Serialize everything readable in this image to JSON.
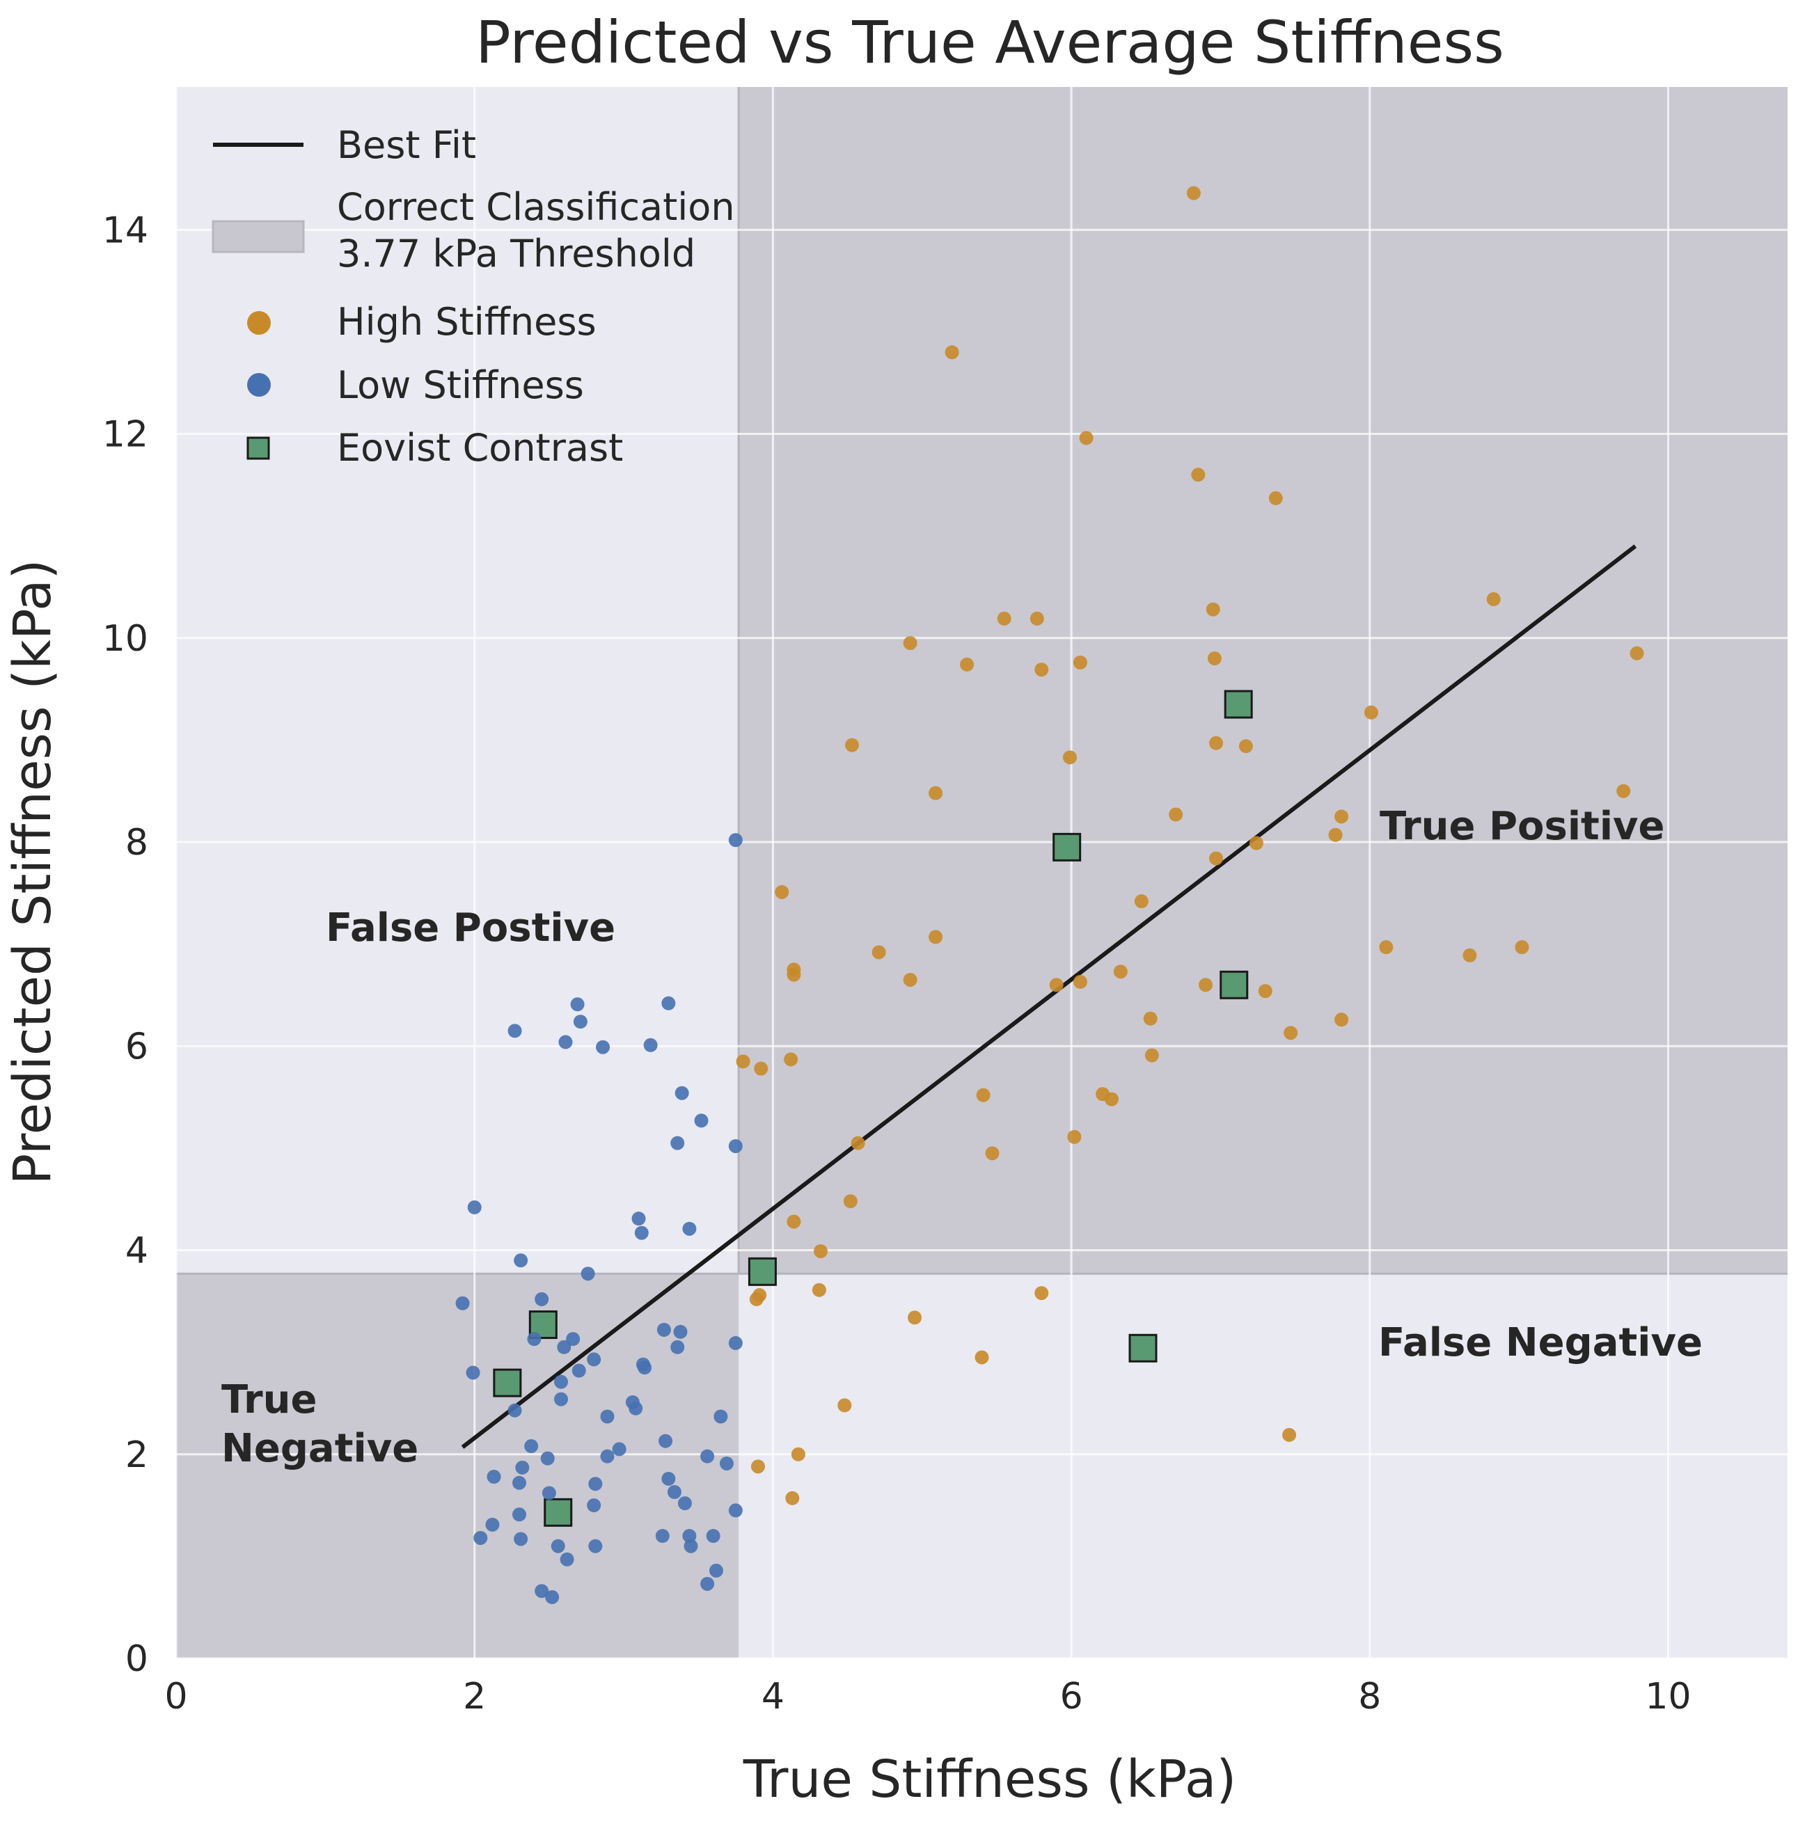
{
  "chart_data": {
    "type": "scatter",
    "title": "Predicted vs True Average Stiffness",
    "xlabel": "True Stiffness (kPa)",
    "ylabel": "Predicted Stiffness (kPa)",
    "xlim": [
      0,
      10.8
    ],
    "ylim": [
      0,
      15.4
    ],
    "xticks": [
      0,
      2,
      4,
      6,
      8,
      10
    ],
    "yticks": [
      0,
      2,
      4,
      6,
      8,
      10,
      12,
      14
    ],
    "grid": true,
    "threshold": 3.77,
    "legend_position": "top-left",
    "legend": {
      "best_fit": "Best Fit",
      "correct_classification_line1": "Correct Classification",
      "correct_classification_line2": "3.77 kPa Threshold",
      "high": "High Stiffness",
      "low": "Low Stiffness",
      "eovist": "Eovist Contrast"
    },
    "annotations": {
      "false_positive": "False Postive",
      "true_positive": "True Positive",
      "false_negative": "False Negative",
      "true_negative_line1": "True",
      "true_negative_line2": "Negative"
    },
    "colors": {
      "background": "#eaeaf2",
      "shade": "#c8c7cf",
      "high": "#c88a28",
      "low": "#4671b0",
      "eovist": "#5a9a72",
      "fit": "#1a1a1a",
      "grid": "#ffffff"
    },
    "best_fit": {
      "x": [
        1.92,
        9.78
      ],
      "y": [
        2.07,
        10.9
      ]
    },
    "series": [
      {
        "name": "High Stiffness",
        "points": [
          [
            6.82,
            14.36
          ],
          [
            5.2,
            12.8
          ],
          [
            6.1,
            11.96
          ],
          [
            6.85,
            11.6
          ],
          [
            7.37,
            11.37
          ],
          [
            8.83,
            10.38
          ],
          [
            6.95,
            10.28
          ],
          [
            5.55,
            10.19
          ],
          [
            5.77,
            10.19
          ],
          [
            4.92,
            9.95
          ],
          [
            9.79,
            9.85
          ],
          [
            6.96,
            9.8
          ],
          [
            6.06,
            9.76
          ],
          [
            5.3,
            9.74
          ],
          [
            5.8,
            9.69
          ],
          [
            8.01,
            9.27
          ],
          [
            6.97,
            8.97
          ],
          [
            7.17,
            8.94
          ],
          [
            4.53,
            8.95
          ],
          [
            5.99,
            8.83
          ],
          [
            5.09,
            8.48
          ],
          [
            9.7,
            8.5
          ],
          [
            6.7,
            8.27
          ],
          [
            7.81,
            8.25
          ],
          [
            7.77,
            8.07
          ],
          [
            7.24,
            7.99
          ],
          [
            6.97,
            7.84
          ],
          [
            4.06,
            7.51
          ],
          [
            6.47,
            7.42
          ],
          [
            5.09,
            7.07
          ],
          [
            4.71,
            6.92
          ],
          [
            8.11,
            6.97
          ],
          [
            9.02,
            6.97
          ],
          [
            8.67,
            6.89
          ],
          [
            4.14,
            6.75
          ],
          [
            4.14,
            6.7
          ],
          [
            6.33,
            6.73
          ],
          [
            4.92,
            6.65
          ],
          [
            5.9,
            6.6
          ],
          [
            6.06,
            6.63
          ],
          [
            6.9,
            6.6
          ],
          [
            7.3,
            6.54
          ],
          [
            6.53,
            6.27
          ],
          [
            7.81,
            6.26
          ],
          [
            7.47,
            6.13
          ],
          [
            6.54,
            5.91
          ],
          [
            3.8,
            5.85
          ],
          [
            4.12,
            5.87
          ],
          [
            3.92,
            5.78
          ],
          [
            5.41,
            5.52
          ],
          [
            6.21,
            5.53
          ],
          [
            6.27,
            5.48
          ],
          [
            6.02,
            5.11
          ],
          [
            4.57,
            5.05
          ],
          [
            5.47,
            4.95
          ],
          [
            4.52,
            4.48
          ],
          [
            4.14,
            4.28
          ],
          [
            4.32,
            3.99
          ],
          [
            4.31,
            3.61
          ],
          [
            5.8,
            3.58
          ],
          [
            3.91,
            3.56
          ],
          [
            3.89,
            3.52
          ],
          [
            4.95,
            3.34
          ],
          [
            5.4,
            2.95
          ],
          [
            4.48,
            2.48
          ],
          [
            7.46,
            2.19
          ],
          [
            4.17,
            2.0
          ],
          [
            3.9,
            1.88
          ],
          [
            4.13,
            1.57
          ]
        ]
      },
      {
        "name": "Low Stiffness",
        "points": [
          [
            3.75,
            8.02
          ],
          [
            2.69,
            6.41
          ],
          [
            3.3,
            6.42
          ],
          [
            2.71,
            6.24
          ],
          [
            2.27,
            6.15
          ],
          [
            2.61,
            6.04
          ],
          [
            2.86,
            5.99
          ],
          [
            3.18,
            6.01
          ],
          [
            3.39,
            5.54
          ],
          [
            3.52,
            5.27
          ],
          [
            3.36,
            5.05
          ],
          [
            3.75,
            5.02
          ],
          [
            2.0,
            4.42
          ],
          [
            3.1,
            4.31
          ],
          [
            3.12,
            4.17
          ],
          [
            3.44,
            4.21
          ],
          [
            2.31,
            3.9
          ],
          [
            2.76,
            3.77
          ],
          [
            1.92,
            3.48
          ],
          [
            2.45,
            3.52
          ],
          [
            3.27,
            3.22
          ],
          [
            3.38,
            3.2
          ],
          [
            2.4,
            3.13
          ],
          [
            2.66,
            3.13
          ],
          [
            2.6,
            3.05
          ],
          [
            3.36,
            3.05
          ],
          [
            3.75,
            3.09
          ],
          [
            2.8,
            2.93
          ],
          [
            3.13,
            2.88
          ],
          [
            3.14,
            2.85
          ],
          [
            2.7,
            2.82
          ],
          [
            1.99,
            2.8
          ],
          [
            2.58,
            2.71
          ],
          [
            2.58,
            2.54
          ],
          [
            3.06,
            2.51
          ],
          [
            3.08,
            2.45
          ],
          [
            2.27,
            2.43
          ],
          [
            2.89,
            2.37
          ],
          [
            3.65,
            2.37
          ],
          [
            3.28,
            2.13
          ],
          [
            2.38,
            2.08
          ],
          [
            2.97,
            2.05
          ],
          [
            2.89,
            1.98
          ],
          [
            2.49,
            1.96
          ],
          [
            3.56,
            1.98
          ],
          [
            3.69,
            1.91
          ],
          [
            2.32,
            1.87
          ],
          [
            2.13,
            1.78
          ],
          [
            3.3,
            1.76
          ],
          [
            2.3,
            1.72
          ],
          [
            2.81,
            1.71
          ],
          [
            3.34,
            1.63
          ],
          [
            2.5,
            1.62
          ],
          [
            3.41,
            1.52
          ],
          [
            2.8,
            1.5
          ],
          [
            3.75,
            1.45
          ],
          [
            2.3,
            1.41
          ],
          [
            2.12,
            1.31
          ],
          [
            3.26,
            1.2
          ],
          [
            3.44,
            1.2
          ],
          [
            3.6,
            1.2
          ],
          [
            2.04,
            1.18
          ],
          [
            2.31,
            1.17
          ],
          [
            2.56,
            1.1
          ],
          [
            2.81,
            1.1
          ],
          [
            3.45,
            1.1
          ],
          [
            2.62,
            0.97
          ],
          [
            3.62,
            0.86
          ],
          [
            3.56,
            0.73
          ],
          [
            2.45,
            0.66
          ],
          [
            2.52,
            0.6
          ]
        ]
      },
      {
        "name": "Eovist Contrast",
        "points": [
          [
            7.12,
            9.35
          ],
          [
            5.97,
            7.95
          ],
          [
            7.09,
            6.6
          ],
          [
            3.93,
            3.79
          ],
          [
            2.46,
            3.27
          ],
          [
            6.48,
            3.04
          ],
          [
            2.22,
            2.7
          ],
          [
            2.56,
            1.43
          ]
        ]
      }
    ]
  }
}
